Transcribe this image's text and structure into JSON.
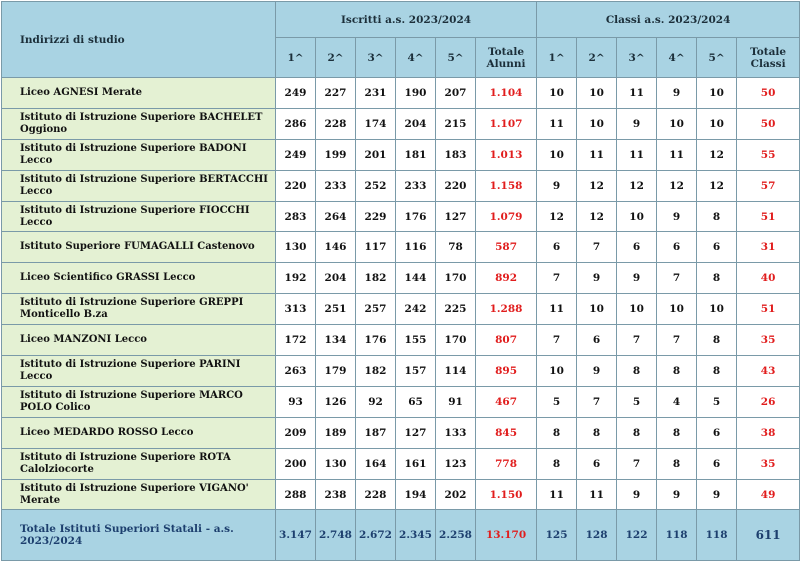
{
  "header": {
    "col_label": "Indirizzi di studio",
    "group_iscritti": "Iscritti a.s. 2023/2024",
    "group_classi": "Classi a.s. 2023/2024",
    "sub": [
      "1^",
      "2^",
      "3^",
      "4^",
      "5^"
    ],
    "totale_alunni": "Totale Alunni",
    "totale_classi": "Totale Classi"
  },
  "rows": [
    {
      "name": "Liceo AGNESI Merate",
      "iscritti": [
        "249",
        "227",
        "231",
        "190",
        "207"
      ],
      "tot_alunni": "1.104",
      "classi": [
        "10",
        "10",
        "11",
        "9",
        "10"
      ],
      "tot_classi": "50"
    },
    {
      "name": "Istituto di Istruzione Superiore BACHELET Oggiono",
      "iscritti": [
        "286",
        "228",
        "174",
        "204",
        "215"
      ],
      "tot_alunni": "1.107",
      "classi": [
        "11",
        "10",
        "9",
        "10",
        "10"
      ],
      "tot_classi": "50"
    },
    {
      "name": "Istituto di Istruzione Superiore BADONI Lecco",
      "iscritti": [
        "249",
        "199",
        "201",
        "181",
        "183"
      ],
      "tot_alunni": "1.013",
      "classi": [
        "10",
        "11",
        "11",
        "11",
        "12"
      ],
      "tot_classi": "55"
    },
    {
      "name": "Istituto di Istruzione Superiore BERTACCHI Lecco",
      "iscritti": [
        "220",
        "233",
        "252",
        "233",
        "220"
      ],
      "tot_alunni": "1.158",
      "classi": [
        "9",
        "12",
        "12",
        "12",
        "12"
      ],
      "tot_classi": "57"
    },
    {
      "name": "Istituto di Istruzione Superiore FIOCCHI Lecco",
      "iscritti": [
        "283",
        "264",
        "229",
        "176",
        "127"
      ],
      "tot_alunni": "1.079",
      "classi": [
        "12",
        "12",
        "10",
        "9",
        "8"
      ],
      "tot_classi": "51"
    },
    {
      "name": "Istituto Superiore FUMAGALLI Castenovo",
      "iscritti": [
        "130",
        "146",
        "117",
        "116",
        "78"
      ],
      "tot_alunni": "587",
      "classi": [
        "6",
        "7",
        "6",
        "6",
        "6"
      ],
      "tot_classi": "31"
    },
    {
      "name": "Liceo Scientifico GRASSI Lecco",
      "iscritti": [
        "192",
        "204",
        "182",
        "144",
        "170"
      ],
      "tot_alunni": "892",
      "classi": [
        "7",
        "9",
        "9",
        "7",
        "8"
      ],
      "tot_classi": "40"
    },
    {
      "name": "Istituto di Istruzione Superiore GREPPI Monticello B.za",
      "iscritti": [
        "313",
        "251",
        "257",
        "242",
        "225"
      ],
      "tot_alunni": "1.288",
      "classi": [
        "11",
        "10",
        "10",
        "10",
        "10"
      ],
      "tot_classi": "51"
    },
    {
      "name": "Liceo MANZONI Lecco",
      "iscritti": [
        "172",
        "134",
        "176",
        "155",
        "170"
      ],
      "tot_alunni": "807",
      "classi": [
        "7",
        "6",
        "7",
        "7",
        "8"
      ],
      "tot_classi": "35"
    },
    {
      "name": "Istituto di Istruzione Superiore PARINI Lecco",
      "iscritti": [
        "263",
        "179",
        "182",
        "157",
        "114"
      ],
      "tot_alunni": "895",
      "classi": [
        "10",
        "9",
        "8",
        "8",
        "8"
      ],
      "tot_classi": "43"
    },
    {
      "name": "Istituto di Istruzione Superiore MARCO POLO Colico",
      "iscritti": [
        "93",
        "126",
        "92",
        "65",
        "91"
      ],
      "tot_alunni": "467",
      "classi": [
        "5",
        "7",
        "5",
        "4",
        "5"
      ],
      "tot_classi": "26"
    },
    {
      "name": "Liceo MEDARDO ROSSO Lecco",
      "iscritti": [
        "209",
        "189",
        "187",
        "127",
        "133"
      ],
      "tot_alunni": "845",
      "classi": [
        "8",
        "8",
        "8",
        "8",
        "6"
      ],
      "tot_classi": "38"
    },
    {
      "name": "Istituto di Istruzione Superiore ROTA Calolziocorte",
      "iscritti": [
        "200",
        "130",
        "164",
        "161",
        "123"
      ],
      "tot_alunni": "778",
      "classi": [
        "8",
        "6",
        "7",
        "8",
        "6"
      ],
      "tot_classi": "35"
    },
    {
      "name": "Istituto di Istruzione Superiore VIGANO' Merate",
      "iscritti": [
        "288",
        "238",
        "228",
        "194",
        "202"
      ],
      "tot_alunni": "1.150",
      "classi": [
        "11",
        "11",
        "9",
        "9",
        "9"
      ],
      "tot_classi": "49"
    }
  ],
  "footer": {
    "label": "Totale Istituti Superiori Statali - a.s. 2023/2024",
    "iscritti": [
      "3.147",
      "2.748",
      "2.672",
      "2.345",
      "2.258"
    ],
    "tot_alunni": "13.170",
    "classi": [
      "125",
      "128",
      "122",
      "118",
      "118"
    ],
    "tot_classi": "611"
  },
  "colors": {
    "header_bg": "#a9d3e3",
    "name_bg": "#e4f1d3",
    "total_red": "#e11d1d",
    "footer_text": "#1d3f6e"
  }
}
